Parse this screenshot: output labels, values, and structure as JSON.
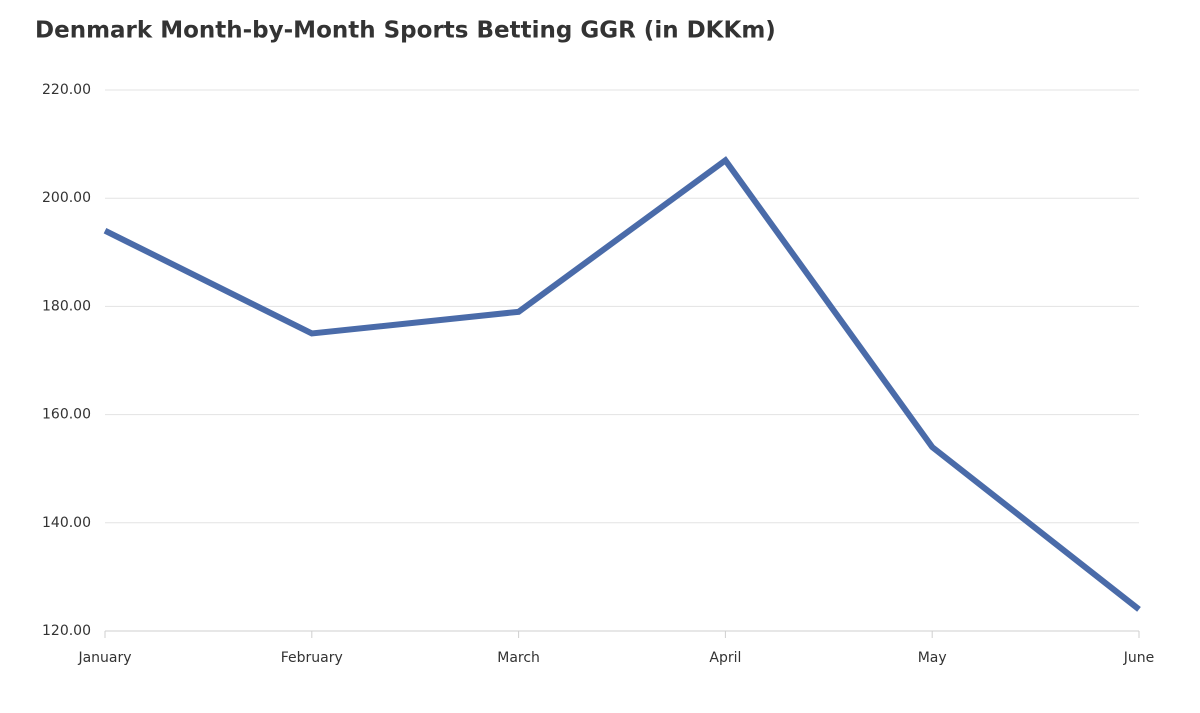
{
  "chart_data": {
    "type": "line",
    "title": "Denmark Month-by-Month Sports Betting GGR (in DKKm)",
    "categories": [
      "January",
      "February",
      "March",
      "April",
      "May",
      "June"
    ],
    "series": [
      {
        "name": "Sports Betting GGR",
        "color": "#4a6ba9",
        "values": [
          194,
          175,
          179,
          207,
          154,
          124
        ]
      }
    ],
    "ylim": [
      120,
      220
    ],
    "yticks": [
      {
        "value": 120,
        "label": "120.00"
      },
      {
        "value": 140,
        "label": "140.00"
      },
      {
        "value": 160,
        "label": "160.00"
      },
      {
        "value": 180,
        "label": "180.00"
      },
      {
        "value": 200,
        "label": "200.00"
      },
      {
        "value": 220,
        "label": "220.00"
      }
    ],
    "grid": true
  }
}
